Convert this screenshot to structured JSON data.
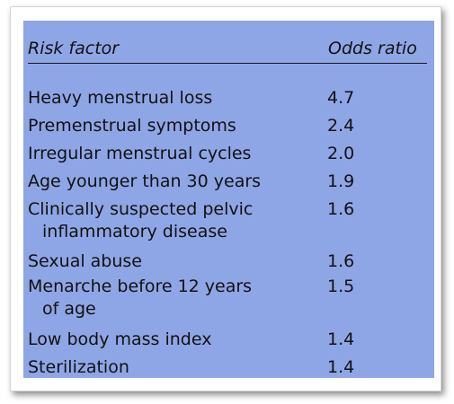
{
  "table": {
    "headers": {
      "factor": "Risk factor",
      "odds": "Odds ratio"
    },
    "rows": [
      {
        "factor": [
          "Heavy menstrual loss"
        ],
        "odds": "4.7"
      },
      {
        "factor": [
          "Premenstrual symptoms"
        ],
        "odds": "2.4"
      },
      {
        "factor": [
          "Irregular menstrual cycles"
        ],
        "odds": "2.0"
      },
      {
        "factor": [
          "Age younger than 30 years"
        ],
        "odds": "1.9"
      },
      {
        "factor": [
          "Clinically suspected pelvic",
          "inflammatory disease"
        ],
        "odds": "1.6"
      },
      {
        "factor": [
          "Sexual abuse"
        ],
        "odds": "1.6"
      },
      {
        "factor": [
          "Menarche before 12 years",
          "of age"
        ],
        "odds": "1.5"
      },
      {
        "factor": [
          "Low body mass index"
        ],
        "odds": "1.4"
      },
      {
        "factor": [
          "Sterilization"
        ],
        "odds": "1.4"
      }
    ]
  },
  "colors": {
    "panel_background": "#8fa6e6",
    "text": "#111111",
    "rule": "#1a1a1a"
  }
}
